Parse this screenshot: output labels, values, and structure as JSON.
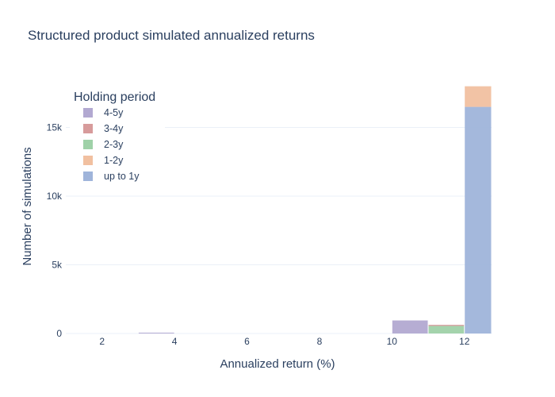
{
  "chart_data": {
    "type": "bar",
    "stacked": true,
    "title": "Structured product simulated annualized returns",
    "xlabel": "Annualized return (%)",
    "ylabel": "Number of simulations",
    "xlim": [
      1,
      12.75
    ],
    "ylim": [
      0,
      18500
    ],
    "x_ticks": [
      2,
      4,
      6,
      8,
      10,
      12
    ],
    "x_tick_labels": [
      "2",
      "4",
      "6",
      "8",
      "10",
      "12"
    ],
    "y_ticks": [
      0,
      5000,
      10000,
      15000
    ],
    "y_tick_labels": [
      "0",
      "5k",
      "10k",
      "15k"
    ],
    "grid": true,
    "bin_width": 1,
    "legend": {
      "title": "Holding period",
      "position": "top-left"
    },
    "series": [
      {
        "name": "4-5y",
        "color": "#b2a9d1",
        "bins": [
          {
            "x0": 3,
            "x1": 4,
            "value": 60
          },
          {
            "x0": 10,
            "x1": 11,
            "value": 950
          }
        ]
      },
      {
        "name": "3-4y",
        "color": "#d79b9b",
        "bins": [
          {
            "x0": 11,
            "x1": 12,
            "value": 80
          }
        ]
      },
      {
        "name": "2-3y",
        "color": "#9fd1a8",
        "bins": [
          {
            "x0": 11,
            "x1": 12,
            "value": 550
          }
        ]
      },
      {
        "name": "1-2y",
        "color": "#f1c0a0",
        "bins": [
          {
            "x0": 12,
            "x1": 13,
            "value": 1500
          }
        ]
      },
      {
        "name": "up to 1y",
        "color": "#9fb4da",
        "bins": [
          {
            "x0": 12,
            "x1": 13,
            "value": 16500
          }
        ]
      }
    ],
    "legend_order": [
      "4-5y",
      "3-4y",
      "2-3y",
      "1-2y",
      "up to 1y"
    ],
    "stack_order": [
      "up to 1y",
      "1-2y",
      "2-3y",
      "3-4y",
      "4-5y"
    ]
  }
}
